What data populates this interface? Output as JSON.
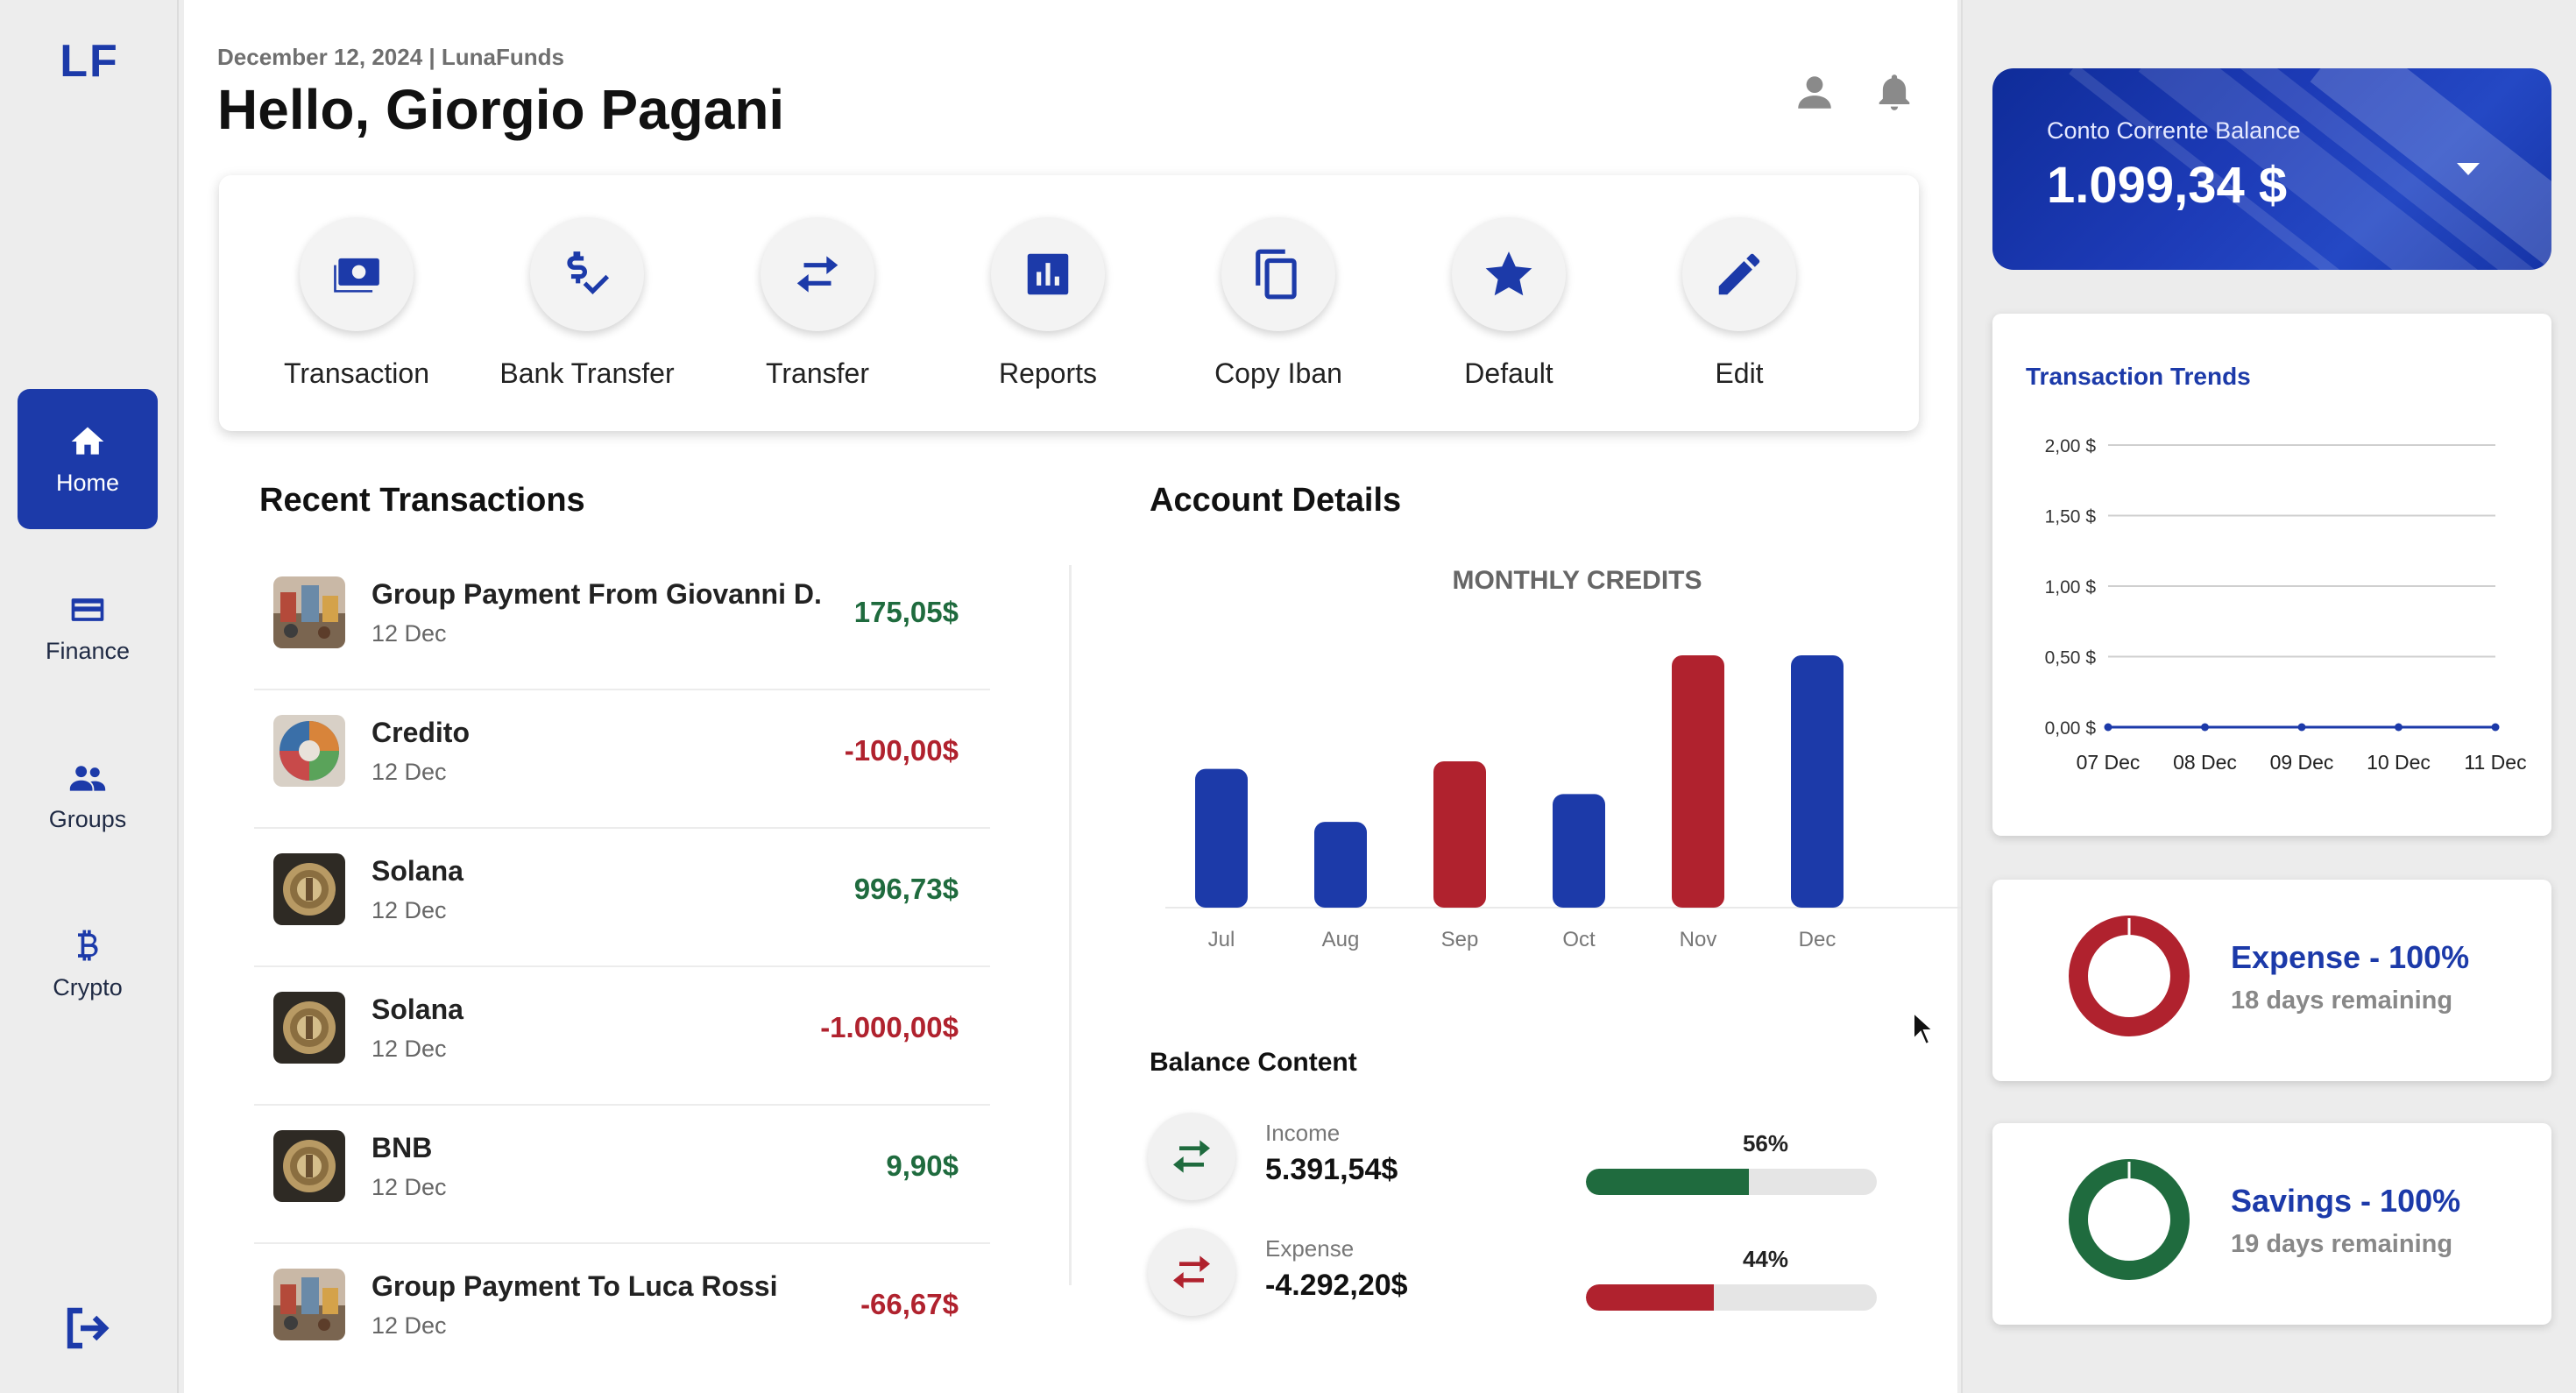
{
  "app": {
    "logo": "LF"
  },
  "sidebar": {
    "items": [
      {
        "label": "Home",
        "icon": "home-icon",
        "active": true
      },
      {
        "label": "Finance",
        "icon": "card-icon"
      },
      {
        "label": "Groups",
        "icon": "groups-icon"
      },
      {
        "label": "Crypto",
        "icon": "bitcoin-icon"
      }
    ],
    "logout_icon": "logout-icon"
  },
  "header": {
    "date_line": "December 12, 2024 | LunaFunds",
    "greeting": "Hello, Giorgio Pagani"
  },
  "actions": [
    {
      "label": "Transaction",
      "icon": "money-icon"
    },
    {
      "label": "Bank Transfer",
      "icon": "dollar-check-icon"
    },
    {
      "label": "Transfer",
      "icon": "swap-icon"
    },
    {
      "label": "Reports",
      "icon": "chart-icon"
    },
    {
      "label": "Copy Iban",
      "icon": "copy-icon"
    },
    {
      "label": "Default",
      "icon": "star-icon"
    },
    {
      "label": "Edit",
      "icon": "pencil-icon"
    }
  ],
  "recent": {
    "title": "Recent Transactions",
    "items": [
      {
        "name": "Group Payment From Giovanni D.",
        "date": "12 Dec",
        "amount": "175,05$",
        "type": "pos"
      },
      {
        "name": "Credito",
        "date": "12 Dec",
        "amount": "-100,00$",
        "type": "neg"
      },
      {
        "name": "Solana",
        "date": "12 Dec",
        "amount": "996,73$",
        "type": "pos"
      },
      {
        "name": "Solana",
        "date": "12 Dec",
        "amount": "-1.000,00$",
        "type": "neg"
      },
      {
        "name": "BNB",
        "date": "12 Dec",
        "amount": "9,90$",
        "type": "pos"
      },
      {
        "name": "Group Payment To Luca Rossi",
        "date": "12 Dec",
        "amount": "-66,67$",
        "type": "neg"
      }
    ]
  },
  "account": {
    "title": "Account Details",
    "balance_title": "Balance Content",
    "income": {
      "label": "Income",
      "value": "5.391,54$",
      "pct_label": "56%",
      "pct": 56
    },
    "expense": {
      "label": "Expense",
      "value": "-4.292,20$",
      "pct_label": "44%",
      "pct": 44
    }
  },
  "colors": {
    "accent": "#1c3aa9",
    "red": "#b0222e",
    "green": "#1f6b3e"
  },
  "chart_data": [
    {
      "type": "bar",
      "title": "MONTHLY CREDITS",
      "categories": [
        "Jul",
        "Aug",
        "Sep",
        "Oct",
        "Nov",
        "Dec"
      ],
      "values": [
        55,
        34,
        58,
        45,
        100,
        100
      ],
      "bar_colors": [
        "#1c3aa9",
        "#1c3aa9",
        "#b0222e",
        "#1c3aa9",
        "#b0222e",
        "#1c3aa9"
      ],
      "ylim": [
        0,
        100
      ],
      "grid": false
    },
    {
      "type": "line",
      "title": "Transaction Trends",
      "x": [
        "07 Dec",
        "08 Dec",
        "09 Dec",
        "10 Dec",
        "11 Dec"
      ],
      "y": [
        0,
        0,
        0,
        0,
        0
      ],
      "yticks": [
        "0,00 $",
        "0,50 $",
        "1,00 $",
        "1,50 $",
        "2,00 $"
      ],
      "ylim": [
        0,
        2
      ],
      "grid": true
    }
  ],
  "balance": {
    "label": "Conto Corrente Balance",
    "value": "1.099,34 $"
  },
  "goals": [
    {
      "title": "Expense - 100%",
      "sub": "18 days remaining",
      "color": "#b0222e",
      "pct": 100
    },
    {
      "title": "Savings - 100%",
      "sub": "19 days remaining",
      "color": "#1f6b3e",
      "pct": 100
    }
  ]
}
